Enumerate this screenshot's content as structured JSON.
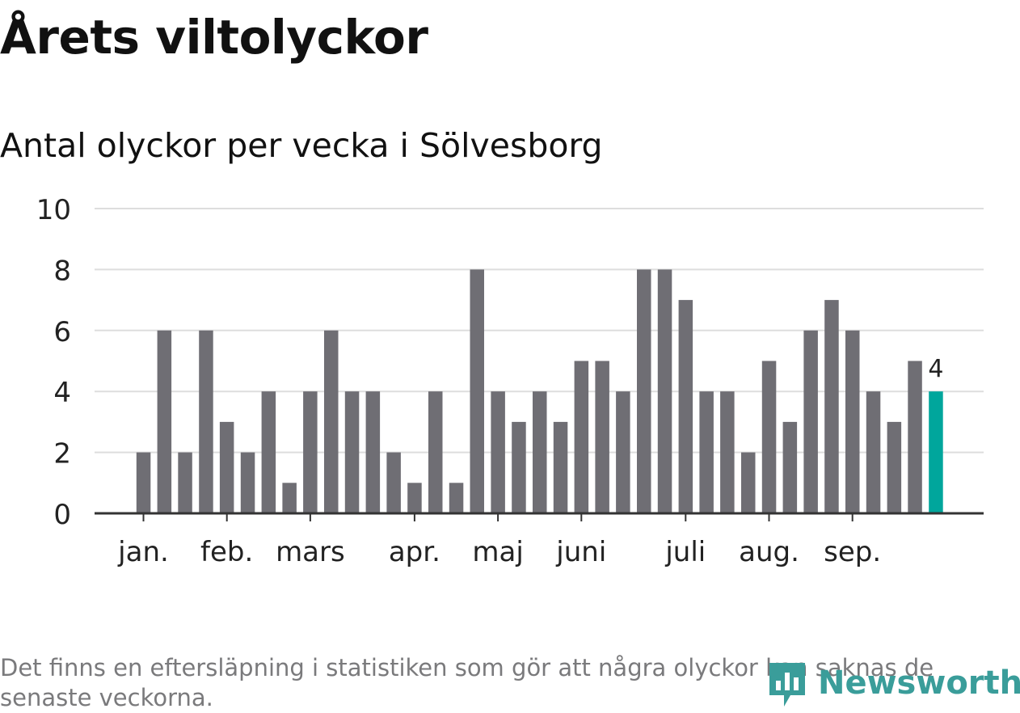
{
  "header": {
    "title": "Årets viltolyckor",
    "subtitle": "Antal olyckor per vecka i Sölvesborg"
  },
  "footer": {
    "note": "Det finns en eftersläpning i statistiken som gör att några olyckor kan saknas de senaste veckorna.",
    "logo_text": "Newsworthy",
    "logo_icon": "newsworthy-bar-icon"
  },
  "colors": {
    "bar": "#6f6e74",
    "highlight": "#00a69c",
    "grid": "#dddddd",
    "axis": "#333333",
    "logo": "#3a9d9a"
  },
  "chart_data": {
    "type": "bar",
    "title": "Antal olyckor per vecka i Sölvesborg",
    "xlabel": "",
    "ylabel": "",
    "ylim": [
      0,
      10
    ],
    "yticks": [
      0,
      2,
      4,
      6,
      8,
      10
    ],
    "grid": true,
    "values": [
      2,
      6,
      2,
      6,
      3,
      2,
      4,
      1,
      4,
      6,
      4,
      4,
      2,
      1,
      4,
      1,
      8,
      4,
      3,
      4,
      3,
      5,
      5,
      4,
      8,
      8,
      7,
      4,
      4,
      2,
      5,
      3,
      6,
      7,
      6,
      4,
      3,
      5,
      4
    ],
    "highlight_index": 38,
    "highlight_label": "4",
    "month_ticks": [
      {
        "label": "jan.",
        "week_index": 0
      },
      {
        "label": "feb.",
        "week_index": 4
      },
      {
        "label": "mars",
        "week_index": 8
      },
      {
        "label": "apr.",
        "week_index": 13
      },
      {
        "label": "maj",
        "week_index": 17
      },
      {
        "label": "juni",
        "week_index": 21
      },
      {
        "label": "juli",
        "week_index": 26
      },
      {
        "label": "aug.",
        "week_index": 30
      },
      {
        "label": "sep.",
        "week_index": 34
      }
    ]
  }
}
